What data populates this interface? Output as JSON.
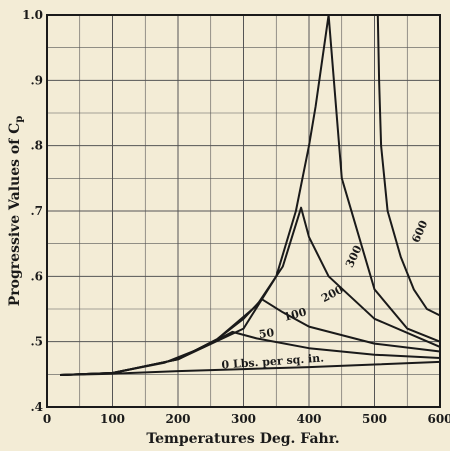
{
  "chart_data": {
    "type": "line",
    "xlabel": "Temperatures Deg. Fahr.",
    "ylabel": "Progressive Values of C",
    "ylabel_subscript": "p",
    "xlim": [
      0,
      600
    ],
    "ylim": [
      0.4,
      1.0
    ],
    "x_ticks": [
      "0",
      "100",
      "200",
      "300",
      "400",
      "500",
      "600"
    ],
    "y_ticks": [
      ".4",
      ".5",
      ".6",
      ".7",
      ".8",
      ".9",
      "1.0"
    ],
    "grid": true,
    "series": [
      {
        "name": "0 Lbs. per sq. in.",
        "x": [
          20,
          100,
          200,
          300,
          400,
          500,
          600
        ],
        "y": [
          0.449,
          0.451,
          0.455,
          0.458,
          0.461,
          0.465,
          0.469
        ]
      },
      {
        "name": "50",
        "x": [
          20,
          100,
          180,
          240,
          283,
          320,
          400,
          500,
          600
        ],
        "y": [
          0.449,
          0.452,
          0.468,
          0.492,
          0.515,
          0.505,
          0.49,
          0.48,
          0.475
        ]
      },
      {
        "name": "100",
        "x": [
          20,
          100,
          200,
          260,
          300,
          328,
          360,
          400,
          500,
          600
        ],
        "y": [
          0.449,
          0.452,
          0.473,
          0.504,
          0.535,
          0.565,
          0.545,
          0.523,
          0.497,
          0.485
        ]
      },
      {
        "name": "200",
        "x": [
          20,
          100,
          200,
          260,
          320,
          360,
          388,
          400,
          430,
          500,
          600
        ],
        "y": [
          0.449,
          0.452,
          0.473,
          0.504,
          0.555,
          0.615,
          0.705,
          0.66,
          0.6,
          0.535,
          0.492
        ]
      },
      {
        "name": "300",
        "x": [
          20,
          100,
          200,
          300,
          350,
          380,
          400,
          410,
          420,
          430,
          450,
          500,
          550,
          600
        ],
        "y": [
          0.449,
          0.452,
          0.473,
          0.52,
          0.6,
          0.7,
          0.8,
          0.86,
          0.93,
          1.0,
          0.75,
          0.58,
          0.52,
          0.5
        ]
      },
      {
        "name": "600",
        "x": [
          505,
          507,
          510,
          520,
          540,
          560,
          580,
          600
        ],
        "y": [
          1.0,
          0.9,
          0.8,
          0.7,
          0.63,
          0.58,
          0.55,
          0.54
        ]
      }
    ],
    "curve_labels": [
      "0 Lbs. per sq. in.",
      "50",
      "100",
      "200",
      "300",
      "600"
    ]
  }
}
